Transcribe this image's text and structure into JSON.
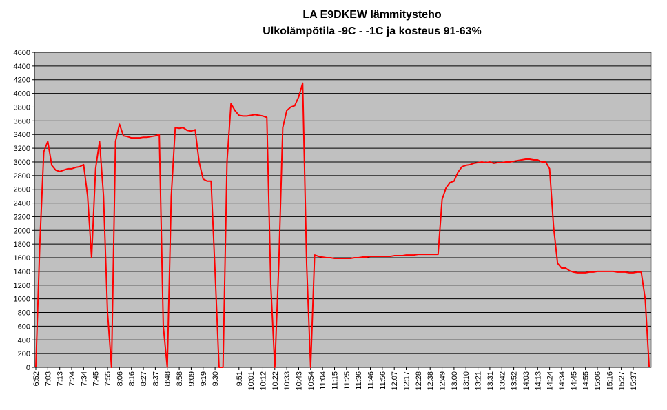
{
  "chart_data": {
    "type": "line",
    "title": "LA E9DKEW lämmitysteho",
    "subtitle": "Ulkolämpötila -9C - -1C ja kosteus 91-63%",
    "categories": [
      "6:52",
      null,
      null,
      "7:03",
      null,
      null,
      "7:13",
      null,
      null,
      "7:24",
      null,
      null,
      "7:34",
      null,
      null,
      "7:45",
      null,
      null,
      "7:55",
      null,
      null,
      "8:06",
      null,
      null,
      "8:16",
      null,
      null,
      "8:27",
      null,
      null,
      "8:37",
      null,
      null,
      "8:48",
      null,
      null,
      "8:58",
      null,
      null,
      "9:09",
      null,
      null,
      "9:19",
      null,
      null,
      "9:30",
      null,
      null,
      null,
      null,
      null,
      "9:51",
      null,
      null,
      "10:01",
      null,
      null,
      "10:12",
      null,
      null,
      "10:22",
      null,
      null,
      "10:33",
      null,
      null,
      "10:43",
      null,
      null,
      "10:54",
      null,
      null,
      "11:04",
      null,
      null,
      "11:15",
      null,
      null,
      "11:25",
      null,
      null,
      "11:36",
      null,
      null,
      "11:46",
      null,
      null,
      "11:56",
      null,
      null,
      "12:07",
      null,
      null,
      "12:17",
      null,
      null,
      "12:28",
      null,
      null,
      "12:38",
      null,
      null,
      "12:49",
      null,
      null,
      "13:00",
      null,
      null,
      "13:10",
      null,
      null,
      "13:21",
      null,
      null,
      "13:31",
      null,
      null,
      "13:42",
      null,
      null,
      "13:52",
      null,
      null,
      "14:03",
      null,
      null,
      "14:13",
      null,
      null,
      "14:24",
      null,
      null,
      "14:34",
      null,
      null,
      "14:45",
      null,
      null,
      "14:55",
      null,
      null,
      "15:06",
      null,
      null,
      "15:16",
      null,
      null,
      "15:27",
      null,
      null,
      "15:37",
      null,
      null,
      null,
      null
    ],
    "series": [
      {
        "color": "#ff0000",
        "values": [
          0,
          1800,
          3150,
          3300,
          2950,
          2880,
          2860,
          2880,
          2900,
          2900,
          2920,
          2930,
          2960,
          2500,
          1600,
          2900,
          3300,
          2500,
          800,
          0,
          3300,
          3550,
          3380,
          3370,
          3350,
          3350,
          3350,
          3360,
          3360,
          3370,
          3380,
          3400,
          600,
          0,
          2500,
          3500,
          3490,
          3500,
          3460,
          3450,
          3470,
          3000,
          2750,
          2720,
          2720,
          1400,
          0,
          0,
          3000,
          3850,
          3750,
          3680,
          3670,
          3670,
          3680,
          3690,
          3680,
          3670,
          3650,
          1200,
          0,
          1500,
          3500,
          3750,
          3800,
          3820,
          3950,
          4150,
          1500,
          0,
          1640,
          1620,
          1610,
          1600,
          1600,
          1590,
          1590,
          1590,
          1590,
          1590,
          1600,
          1600,
          1610,
          1610,
          1620,
          1620,
          1620,
          1620,
          1620,
          1620,
          1630,
          1630,
          1630,
          1640,
          1640,
          1640,
          1650,
          1650,
          1650,
          1650,
          1650,
          1650,
          2450,
          2620,
          2700,
          2720,
          2850,
          2930,
          2950,
          2960,
          2980,
          2990,
          3000,
          2990,
          3000,
          2980,
          2990,
          2990,
          3000,
          3000,
          3010,
          3020,
          3030,
          3040,
          3040,
          3030,
          3030,
          3000,
          3000,
          2900,
          2050,
          1520,
          1450,
          1450,
          1410,
          1390,
          1380,
          1380,
          1380,
          1390,
          1390,
          1400,
          1400,
          1400,
          1400,
          1400,
          1390,
          1390,
          1390,
          1380,
          1380,
          1390,
          1390,
          1000,
          0
        ]
      }
    ],
    "ylim": [
      0,
      4600
    ],
    "yticks": [
      0,
      200,
      400,
      600,
      800,
      1000,
      1200,
      1400,
      1600,
      1800,
      2000,
      2200,
      2400,
      2600,
      2800,
      3000,
      3200,
      3400,
      3600,
      3800,
      4000,
      4200,
      4400,
      4600
    ],
    "grid": true
  }
}
